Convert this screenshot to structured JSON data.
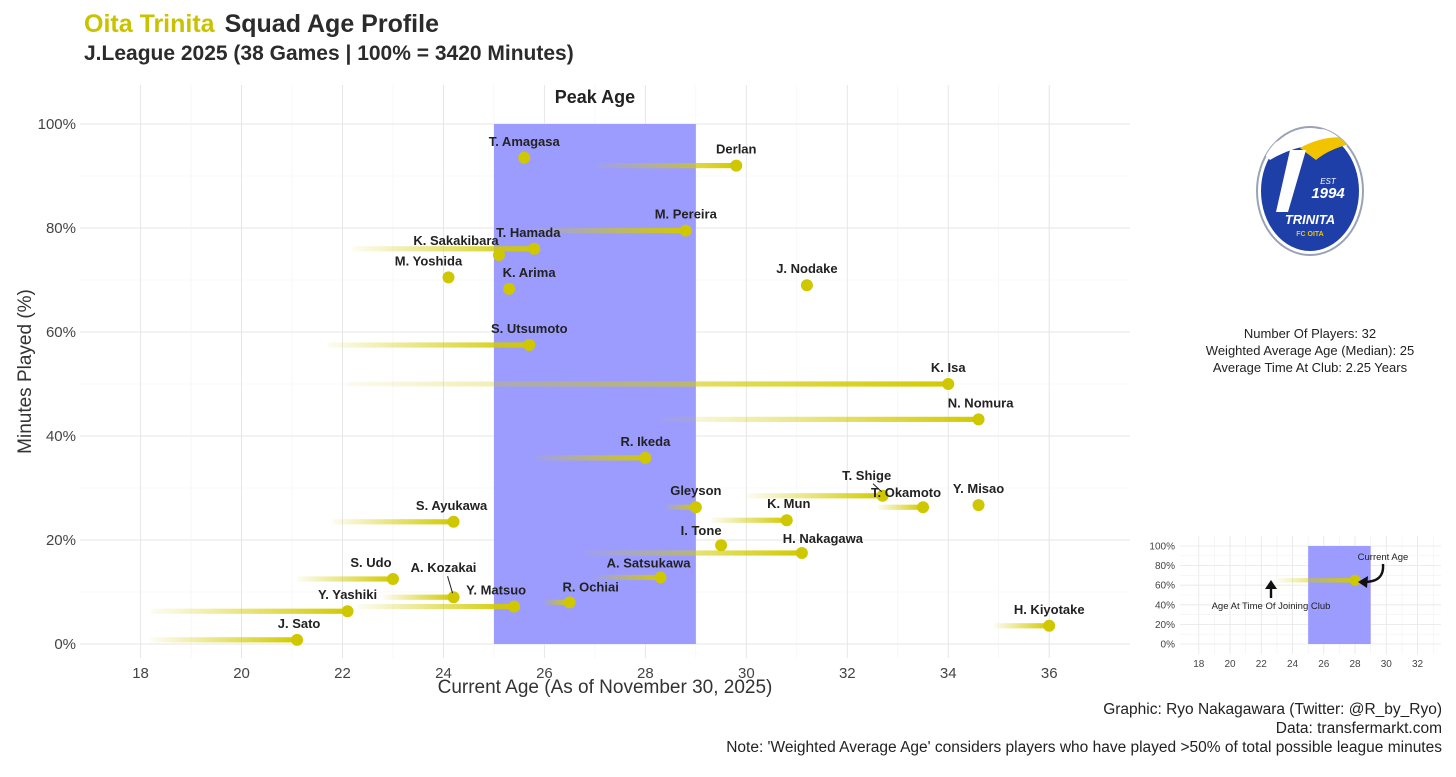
{
  "header": {
    "club": "Oita Trinita",
    "title": "Squad Age Profile",
    "subtitle": "J.League 2025 (38 Games | 100% = 3420 Minutes)"
  },
  "stats": {
    "players": "Number Of Players: 32",
    "weighted_age": "Weighted Average Age (Median): 25",
    "time_at_club": "Average Time At Club: 2.25 Years"
  },
  "logo": {
    "est": "EST",
    "year": "1994",
    "name": "TRINITA",
    "sub": "FC OITA"
  },
  "footer": {
    "credit": "Graphic: Ryo Nakagawara (Twitter: @R_by_Ryo)",
    "data": "Data: transfermarkt.com",
    "note": "Note: 'Weighted Average Age' considers players who have played >50% of total possible league minutes"
  },
  "colors": {
    "accent": "#c9c200",
    "point": "#cfc700",
    "peak_band": "#9999ff"
  },
  "chart_data": [
    {
      "type": "scatter",
      "xlabel": "Current Age (As of November 30, 2025)",
      "ylabel": "Minutes Played (%)",
      "xlim": [
        16.8,
        37.6
      ],
      "ylim": [
        0,
        100
      ],
      "x_ticks": [
        18,
        20,
        22,
        24,
        26,
        28,
        30,
        32,
        34,
        36
      ],
      "y_ticks": [
        0,
        20,
        40,
        60,
        80,
        100
      ],
      "y_tick_labels": [
        "0%",
        "20%",
        "40%",
        "60%",
        "80%",
        "100%"
      ],
      "grid": true,
      "peak_age": {
        "label": "Peak Age",
        "from": 25,
        "to": 29
      },
      "players": [
        {
          "name": "T. Amagasa",
          "age": 25.6,
          "minutes_pct": 93.5
        },
        {
          "name": "Derlan",
          "age": 29.8,
          "minutes_pct": 92.0,
          "joined_age": 27.0
        },
        {
          "name": "M. Pereira",
          "age": 28.8,
          "minutes_pct": 79.5,
          "joined_age": 25.8
        },
        {
          "name": "T. Hamada",
          "age": 25.8,
          "minutes_pct": 76.0,
          "joined_age": 22.2
        },
        {
          "name": "K. Sakakibara",
          "age": 25.1,
          "minutes_pct": 74.8
        },
        {
          "name": "M. Yoshida",
          "age": 24.1,
          "minutes_pct": 70.5
        },
        {
          "name": "K. Arima",
          "age": 25.3,
          "minutes_pct": 68.3
        },
        {
          "name": "J. Nodake",
          "age": 31.2,
          "minutes_pct": 69.0
        },
        {
          "name": "S. Utsumoto",
          "age": 25.7,
          "minutes_pct": 57.5,
          "joined_age": 21.7
        },
        {
          "name": "K. Isa",
          "age": 34.0,
          "minutes_pct": 50.0,
          "joined_age": 22.1
        },
        {
          "name": "N. Nomura",
          "age": 34.6,
          "minutes_pct": 43.2,
          "joined_age": 28.3
        },
        {
          "name": "R. Ikeda",
          "age": 28.0,
          "minutes_pct": 35.8,
          "joined_age": 25.8
        },
        {
          "name": "T. Shige",
          "age": 32.7,
          "minutes_pct": 28.5,
          "joined_age": 30.0
        },
        {
          "name": "Gleyson",
          "age": 29.0,
          "minutes_pct": 26.3,
          "joined_age": 28.4
        },
        {
          "name": "T. Okamoto",
          "age": 33.5,
          "minutes_pct": 26.3,
          "joined_age": 32.6
        },
        {
          "name": "Y. Misao",
          "age": 34.6,
          "minutes_pct": 26.7
        },
        {
          "name": "K. Mun",
          "age": 30.8,
          "minutes_pct": 23.8,
          "joined_age": 29.3
        },
        {
          "name": "S. Ayukawa",
          "age": 24.2,
          "minutes_pct": 23.5,
          "joined_age": 21.8
        },
        {
          "name": "I. Tone",
          "age": 29.5,
          "minutes_pct": 19.0
        },
        {
          "name": "H. Nakagawa",
          "age": 31.1,
          "minutes_pct": 17.5,
          "joined_age": 26.8
        },
        {
          "name": "A. Satsukawa",
          "age": 28.3,
          "minutes_pct": 12.8,
          "joined_age": 27.0
        },
        {
          "name": "S. Udo",
          "age": 23.0,
          "minutes_pct": 12.5,
          "joined_age": 21.1
        },
        {
          "name": "A. Kozakai",
          "age": 24.2,
          "minutes_pct": 9.0,
          "joined_age": 22.8
        },
        {
          "name": "Y. Matsuo",
          "age": 25.4,
          "minutes_pct": 7.2,
          "joined_age": 22.3
        },
        {
          "name": "R. Ochiai",
          "age": 26.5,
          "minutes_pct": 8.0,
          "joined_age": 26.0
        },
        {
          "name": "Y. Yashiki",
          "age": 22.1,
          "minutes_pct": 6.3,
          "joined_age": 18.2
        },
        {
          "name": "J. Sato",
          "age": 21.1,
          "minutes_pct": 0.8,
          "joined_age": 18.2
        },
        {
          "name": "H. Kiyotake",
          "age": 36.0,
          "minutes_pct": 3.5,
          "joined_age": 34.9
        }
      ],
      "labels": [
        {
          "name": "T. Amagasa",
          "dx": 0,
          "dy": -12
        },
        {
          "name": "Derlan",
          "dx": 0,
          "dy": -12
        },
        {
          "name": "M. Pereira",
          "dx": 0,
          "dy": -12
        },
        {
          "name": "T. Hamada",
          "dx": -6,
          "dy": -12
        },
        {
          "name": "K. Sakakibara",
          "dx": -43,
          "dy": -10
        },
        {
          "name": "M. Yoshida",
          "dx": -20,
          "dy": -12
        },
        {
          "name": "K. Arima",
          "dx": 20,
          "dy": -12
        },
        {
          "name": "J. Nodake",
          "dx": 0,
          "dy": -12
        },
        {
          "name": "S. Utsumoto",
          "dx": 0,
          "dy": -12
        },
        {
          "name": "K. Isa",
          "dx": 0,
          "dy": -12
        },
        {
          "name": "N. Nomura",
          "dx": 2,
          "dy": -12
        },
        {
          "name": "R. Ikeda",
          "dx": 0,
          "dy": -12
        },
        {
          "name": "T. Shige",
          "dx": -16,
          "dy": -16
        },
        {
          "name": "Gleyson",
          "dx": 0,
          "dy": -12
        },
        {
          "name": "T. Okamoto",
          "dx": -17,
          "dy": -10
        },
        {
          "name": "Y. Misao",
          "dx": 0,
          "dy": -12
        },
        {
          "name": "K. Mun",
          "dx": 2,
          "dy": -12
        },
        {
          "name": "S. Ayukawa",
          "dx": -2,
          "dy": -12
        },
        {
          "name": "I. Tone",
          "dx": -20,
          "dy": -10
        },
        {
          "name": "H. Nakagawa",
          "dx": 21,
          "dy": -10
        },
        {
          "name": "A. Satsukawa",
          "dx": -12,
          "dy": -10
        },
        {
          "name": "S. Udo",
          "dx": -22,
          "dy": -12
        },
        {
          "name": "A. Kozakai",
          "dx": -10,
          "dy": -25
        },
        {
          "name": "Y. Matsuo",
          "dx": -18,
          "dy": -12
        },
        {
          "name": "R. Ochiai",
          "dx": 21,
          "dy": -11
        },
        {
          "name": "Y. Yashiki",
          "dx": 0,
          "dy": -12
        },
        {
          "name": "J. Sato",
          "dx": 2,
          "dy": -12
        },
        {
          "name": "H. Kiyotake",
          "dx": 0,
          "dy": -12
        }
      ]
    },
    {
      "type": "scatter",
      "role": "legend",
      "xlim": [
        16.8,
        33.5
      ],
      "ylim": [
        0,
        100
      ],
      "x_ticks": [
        18,
        20,
        22,
        24,
        26,
        28,
        30,
        32
      ],
      "y_ticks": [
        0,
        20,
        40,
        60,
        80,
        100
      ],
      "y_tick_labels": [
        "0%",
        "20%",
        "40%",
        "60%",
        "80%",
        "100%"
      ],
      "peak_age": {
        "from": 25,
        "to": 29
      },
      "example": {
        "age": 28,
        "minutes_pct": 65,
        "joined_age": 23
      },
      "annotations": {
        "current": "Current Age",
        "joined": "Age At Time Of Joining Club"
      }
    }
  ]
}
